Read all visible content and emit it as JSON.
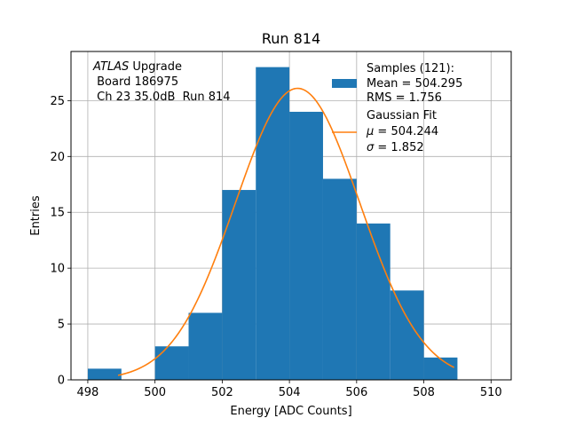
{
  "chart_data": {
    "type": "bar",
    "title": "Run 814",
    "xlabel": "Energy [ADC Counts]",
    "ylabel": "Entries",
    "xlim": [
      497.5,
      510.6
    ],
    "ylim": [
      0,
      29.4
    ],
    "xticks": [
      498,
      500,
      502,
      504,
      506,
      508,
      510
    ],
    "yticks": [
      0,
      5,
      10,
      15,
      20,
      25
    ],
    "grid": true,
    "annotation": {
      "atlas": "ATLAS",
      "upgrade": " Upgrade",
      "board": " Board 186975",
      "channel": " Ch 23 35.0dB  Run 814"
    },
    "histogram": {
      "name": "Samples (121):",
      "color": "#1f77b4",
      "bin_edges": [
        498,
        499,
        500,
        501,
        502,
        503,
        504,
        505,
        506,
        507,
        508,
        509
      ],
      "counts": [
        1,
        0,
        3,
        6,
        17,
        28,
        24,
        18,
        14,
        8,
        2
      ]
    },
    "fit": {
      "name": "Gaussian Fit",
      "color": "#ff7f0e",
      "mu": 504.244,
      "sigma": 1.852,
      "peak": 26.1,
      "x_range": [
        498.9,
        508.9
      ]
    },
    "legend": {
      "placement": "top-right",
      "samples_title": "Samples (121):",
      "samples_mean": "Mean = 504.295",
      "samples_rms": "RMS = 1.756",
      "fit_title": "Gaussian Fit",
      "fit_mu_symbol": "μ",
      "fit_mu_value": " = 504.244",
      "fit_sigma_symbol": "σ",
      "fit_sigma_value": " = 1.852"
    }
  }
}
